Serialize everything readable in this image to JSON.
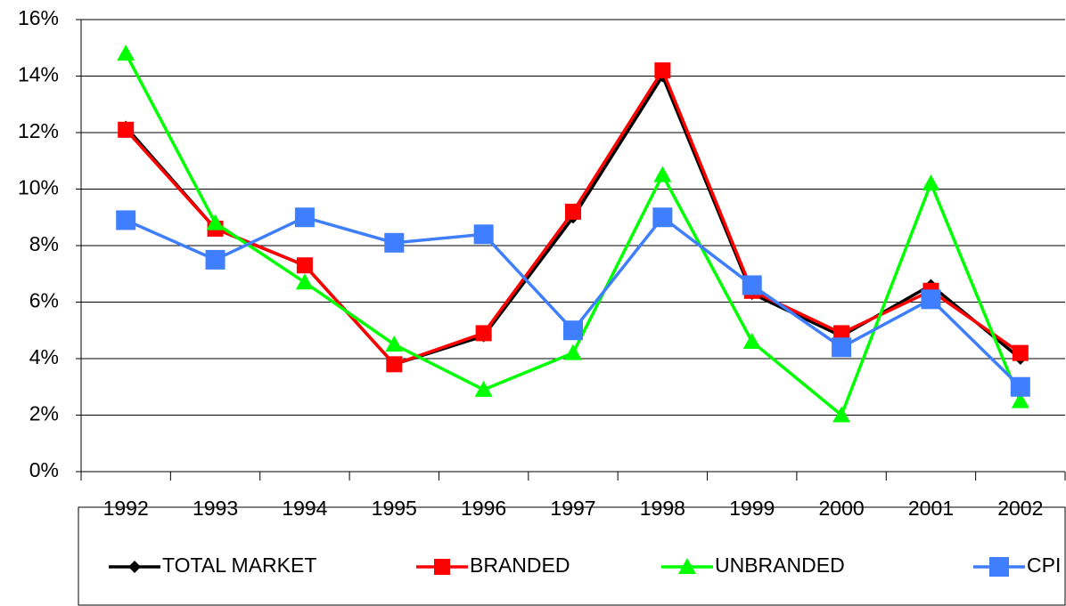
{
  "chart_data": {
    "type": "line",
    "categories": [
      "1992",
      "1993",
      "1994",
      "1995",
      "1996",
      "1997",
      "1998",
      "1999",
      "2000",
      "2001",
      "2002"
    ],
    "series": [
      {
        "name": "TOTAL MARKET",
        "color": "#000000",
        "marker": "diamond",
        "values": [
          12.2,
          8.6,
          7.3,
          3.8,
          4.8,
          9.0,
          14.0,
          6.3,
          4.8,
          6.6,
          4.0
        ]
      },
      {
        "name": "BRANDED",
        "color": "#ff0000",
        "marker": "square",
        "values": [
          12.1,
          8.6,
          7.3,
          3.8,
          4.9,
          9.2,
          14.2,
          6.4,
          4.9,
          6.4,
          4.2
        ]
      },
      {
        "name": "UNBRANDED",
        "color": "#00ff00",
        "marker": "triangle",
        "values": [
          14.8,
          8.8,
          6.7,
          4.5,
          2.9,
          4.2,
          10.5,
          4.6,
          2.0,
          10.2,
          2.5
        ]
      },
      {
        "name": "CPI",
        "color": "#3f7fff",
        "marker": "square",
        "values": [
          8.9,
          7.5,
          9.0,
          8.1,
          8.4,
          5.0,
          9.0,
          6.6,
          4.4,
          6.1,
          3.0
        ]
      }
    ],
    "ylim": [
      0,
      16
    ],
    "yticks": [
      {
        "value": 0,
        "label": "0%"
      },
      {
        "value": 2,
        "label": "2%"
      },
      {
        "value": 4,
        "label": "4%"
      },
      {
        "value": 6,
        "label": "6%"
      },
      {
        "value": 8,
        "label": "8%"
      },
      {
        "value": 10,
        "label": "10%"
      },
      {
        "value": 12,
        "label": "12%"
      },
      {
        "value": 14,
        "label": "14%"
      },
      {
        "value": 16,
        "label": "16%"
      }
    ],
    "grid": true,
    "legend": "bottom"
  }
}
